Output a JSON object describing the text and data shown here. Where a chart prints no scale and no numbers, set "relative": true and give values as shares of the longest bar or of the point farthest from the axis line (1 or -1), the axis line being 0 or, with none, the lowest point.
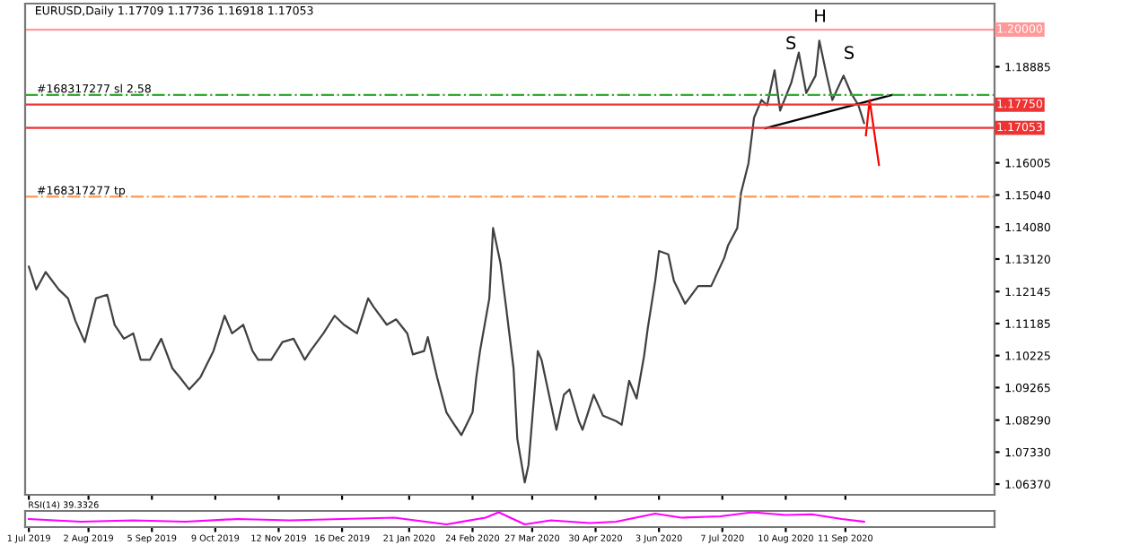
{
  "chart_data": [
    {
      "type": "line",
      "title": "EURUSD,Daily 1.17709 1.17736 1.16918 1.17053",
      "xlim": [
        "2019-06-29",
        "2020-11-30"
      ],
      "ylim": [
        1.0605,
        1.2078
      ],
      "xticks": [
        "2019-07-01",
        "2019-08-02",
        "2019-09-05",
        "2019-10-09",
        "2019-11-12",
        "2019-12-16",
        "2020-01-21",
        "2020-02-24",
        "2020-03-27",
        "2020-04-30",
        "2020-06-03",
        "2020-07-07",
        "2020-08-10",
        "2020-09-11"
      ],
      "yticks": [
        1.18885,
        1.16005,
        {
          "value": 1.1504,
          "label": "1.15040"
        },
        {
          "value": 1.1408,
          "label": "1.14080"
        },
        {
          "value": 1.1312,
          "label": "1.13120"
        },
        1.12145,
        1.11185,
        1.10225,
        1.09265,
        {
          "value": 1.0829,
          "label": "1.08290"
        },
        {
          "value": 1.0733,
          "label": "1.07330"
        },
        {
          "value": 1.0637,
          "label": "1.06370"
        }
      ],
      "tick_labels": "y",
      "grid": false,
      "series": [
        {
          "color": "#404040",
          "x": [
            "2019-07-01",
            "2019-07-05",
            "2019-07-10",
            "2019-07-17",
            "2019-07-22",
            "2019-07-26",
            "2019-07-31",
            "2019-08-06",
            "2019-08-12",
            "2019-08-16",
            "2019-08-21",
            "2019-08-26",
            "2019-08-30",
            "2019-09-04",
            "2019-09-10",
            "2019-09-16",
            "2019-09-20",
            "2019-09-25",
            "2019-10-01",
            "2019-10-08",
            "2019-10-14",
            "2019-10-18",
            "2019-10-24",
            "2019-10-29",
            "2019-11-01",
            "2019-11-08",
            "2019-11-14",
            "2019-11-20",
            "2019-11-26",
            "2019-11-29",
            "2019-12-06",
            "2019-12-12",
            "2019-12-17",
            "2019-12-24",
            "2019-12-30",
            "2020-01-02",
            "2020-01-09",
            "2020-01-14",
            "2020-01-20",
            "2020-01-23",
            "2020-01-29",
            "2020-01-31",
            "2020-02-05",
            "2020-02-10",
            "2020-02-13",
            "2020-02-18",
            "2020-02-24",
            "2020-02-26",
            "2020-02-28",
            "2020-03-04",
            "2020-03-06",
            "2020-03-10",
            "2020-03-13",
            "2020-03-17",
            "2020-03-19",
            "2020-03-23",
            "2020-03-25",
            "2020-03-30",
            "2020-04-01",
            "2020-04-06",
            "2020-04-09",
            "2020-04-13",
            "2020-04-16",
            "2020-04-21",
            "2020-04-23",
            "2020-04-29",
            "2020-05-04",
            "2020-05-11",
            "2020-05-14",
            "2020-05-18",
            "2020-05-22",
            "2020-05-26",
            "2020-05-28",
            "2020-06-01",
            "2020-06-03",
            "2020-06-08",
            "2020-06-11",
            "2020-06-17",
            "2020-06-24",
            "2020-07-01",
            "2020-07-08",
            "2020-07-10",
            "2020-07-15",
            "2020-07-17",
            "2020-07-21",
            "2020-07-24",
            "2020-07-28",
            "2020-07-31",
            "2020-08-04",
            "2020-08-07",
            "2020-08-13",
            "2020-08-17",
            "2020-08-21",
            "2020-08-26",
            "2020-08-28",
            "2020-09-01",
            "2020-09-04",
            "2020-09-10",
            "2020-09-14",
            "2020-09-18",
            "2020-09-21"
          ],
          "values": [
            1.1289,
            1.1221,
            1.1273,
            1.1221,
            1.1194,
            1.1126,
            1.1063,
            1.1194,
            1.1205,
            1.1115,
            1.1073,
            1.1089,
            1.101,
            1.101,
            1.1073,
            1.0984,
            1.0957,
            1.0921,
            1.0957,
            1.1036,
            1.1142,
            1.1089,
            1.1115,
            1.1036,
            1.101,
            1.101,
            1.1063,
            1.1073,
            1.101,
            1.1036,
            1.1089,
            1.1142,
            1.1115,
            1.1089,
            1.1194,
            1.1168,
            1.1115,
            1.1131,
            1.1089,
            1.1026,
            1.1036,
            1.1078,
            1.0957,
            1.0852,
            1.0826,
            1.0784,
            1.0852,
            1.0957,
            1.1036,
            1.1194,
            1.1405,
            1.1299,
            1.1168,
            1.0984,
            1.0773,
            1.0642,
            1.0694,
            1.1036,
            1.101,
            1.0879,
            1.08,
            1.0905,
            1.0921,
            1.0826,
            1.08,
            1.0905,
            1.0842,
            1.0826,
            1.0815,
            1.0947,
            1.0894,
            1.1021,
            1.1105,
            1.1247,
            1.1336,
            1.1326,
            1.1247,
            1.1178,
            1.1231,
            1.1231,
            1.1315,
            1.1352,
            1.1405,
            1.151,
            1.1599,
            1.1736,
            1.1789,
            1.1773,
            1.1878,
            1.1757,
            1.1841,
            1.1931,
            1.181,
            1.1862,
            1.1967,
            1.1862,
            1.1789,
            1.1862,
            1.181,
            1.1773,
            1.172
          ]
        },
        {
          "color": "#000000",
          "x": [
            "2020-07-30",
            "2020-10-06"
          ],
          "values": [
            1.1704,
            1.1804
          ]
        },
        {
          "color": "#ff0000",
          "x": [
            "2020-09-22",
            "2020-09-24",
            "2020-09-29"
          ],
          "values": [
            1.1683,
            1.1789,
            1.1594
          ]
        }
      ],
      "ref_lines": [
        {
          "axis": "y",
          "value": 1.2,
          "label": "1.20000",
          "color": "#ff9999",
          "line_style": "solid"
        },
        {
          "axis": "y",
          "value": 1.1804,
          "label": "#168317277 sl 2.58",
          "color": "#33aa33",
          "line_style": "dashdot"
        },
        {
          "axis": "y",
          "value": 1.1775,
          "label": "1.17750",
          "color": "#ee3333",
          "line_style": "solid"
        },
        {
          "axis": "y",
          "value": 1.17053,
          "label": "1.17053",
          "color": "#ee3333",
          "line_style": "solid"
        },
        {
          "axis": "y",
          "value": 1.1499,
          "label": "#168317277 tp",
          "color": "#ff9955",
          "line_style": "dashdot"
        }
      ],
      "annotations": [
        "S",
        "H",
        "S"
      ]
    },
    {
      "type": "line",
      "title": "RSI(14) 39.3326",
      "relative": true,
      "tick_labels": "x",
      "grid": false,
      "xlim": [
        "2019-06-29",
        "2020-11-30"
      ],
      "xticks": [
        {
          "value": "2019-07-01",
          "label": "1 Jul 2019"
        },
        {
          "value": "2019-08-02",
          "label": "2 Aug 2019"
        },
        {
          "value": "2019-09-05",
          "label": "5 Sep 2019"
        },
        {
          "value": "2019-10-09",
          "label": "9 Oct 2019"
        },
        {
          "value": "2019-11-12",
          "label": "12 Nov 2019"
        },
        {
          "value": "2019-12-16",
          "label": "16 Dec 2019"
        },
        {
          "value": "2020-01-21",
          "label": "21 Jan 2020"
        },
        {
          "value": "2020-02-24",
          "label": "24 Feb 2020"
        },
        {
          "value": "2020-03-27",
          "label": "27 Mar 2020"
        },
        {
          "value": "2020-04-30",
          "label": "30 Apr 2020"
        },
        {
          "value": "2020-06-03",
          "label": "3 Jun 2020"
        },
        {
          "value": "2020-07-07",
          "label": "7 Jul 2020"
        },
        {
          "value": "2020-08-10",
          "label": "10 Aug 2020"
        },
        {
          "value": "2020-09-11",
          "label": "11 Sep 2020"
        }
      ],
      "series": [
        {
          "color": "#ff00ff",
          "x": [
            "2019-07-01",
            "2019-07-29",
            "2019-08-26",
            "2019-09-23",
            "2019-10-21",
            "2019-11-18",
            "2019-12-16",
            "2020-01-13",
            "2020-02-10",
            "2020-03-02",
            "2020-03-09",
            "2020-03-23",
            "2020-04-06",
            "2020-04-27",
            "2020-05-11",
            "2020-06-01",
            "2020-06-15",
            "2020-07-06",
            "2020-07-23",
            "2020-08-10",
            "2020-08-24",
            "2020-09-09",
            "2020-09-21"
          ],
          "values": [
            0.5,
            0.3,
            0.4,
            0.3,
            0.5,
            0.4,
            0.5,
            0.6,
            0.1,
            0.6,
            1.0,
            0.1,
            0.4,
            0.2,
            0.3,
            0.9,
            0.6,
            0.7,
            1.0,
            0.8,
            0.85,
            0.5,
            0.3
          ]
        }
      ]
    }
  ]
}
